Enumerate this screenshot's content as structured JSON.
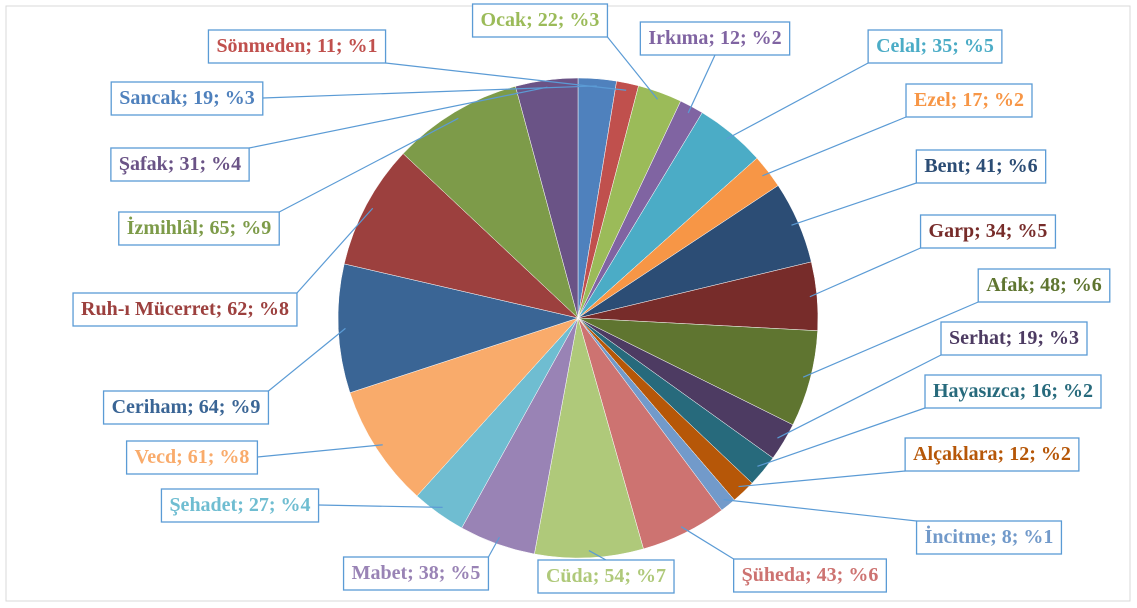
{
  "chart_data": {
    "type": "pie",
    "categories": [
      "Sancak",
      "Sönmeden",
      "Ocak",
      "Irkıma",
      "Celal",
      "Ezel",
      "Bent",
      "Garp",
      "Afak",
      "Serhat",
      "Hayasızca",
      "Alçaklara",
      "İncitme",
      "Şüheda",
      "Cüda",
      "Mabet",
      "Şehadet",
      "Vecd",
      "Ceriham",
      "Ruh-ı Mücerret",
      "İzmihlâl",
      "Şafak"
    ],
    "values": [
      19,
      11,
      22,
      12,
      35,
      17,
      41,
      34,
      48,
      19,
      16,
      12,
      8,
      43,
      54,
      38,
      27,
      61,
      64,
      62,
      65,
      31
    ],
    "value_labels": [
      "; 19; %3",
      "; 11; %1",
      "; 22; %3",
      "; 12; %2",
      "; 35; %5",
      "; 17; %2",
      "; 41; %6",
      "; 34; %5",
      "; 48; %6",
      "; 19; %3",
      "; 16; %2",
      "; 12; %2",
      "; 8; %1",
      "; 43; %6",
      "; 54; %7",
      "; 38; %5",
      "; 27; %4",
      "; 61; %8",
      "; 64; %9",
      "; 62; %8",
      "; 65; %9",
      "; 31; %4"
    ],
    "colors": [
      "#4f81bd",
      "#c0504d",
      "#9bbb59",
      "#8064a2",
      "#4bacc6",
      "#f79646",
      "#2c4d75",
      "#772c2a",
      "#5f7530",
      "#4d3b62",
      "#276a7c",
      "#b65708",
      "#729aca",
      "#cd7371",
      "#afc97a",
      "#9983b5",
      "#6fbdd1",
      "#f9ab6b",
      "#3a6595",
      "#9c403e",
      "#7d9b49",
      "#6a5386"
    ]
  }
}
